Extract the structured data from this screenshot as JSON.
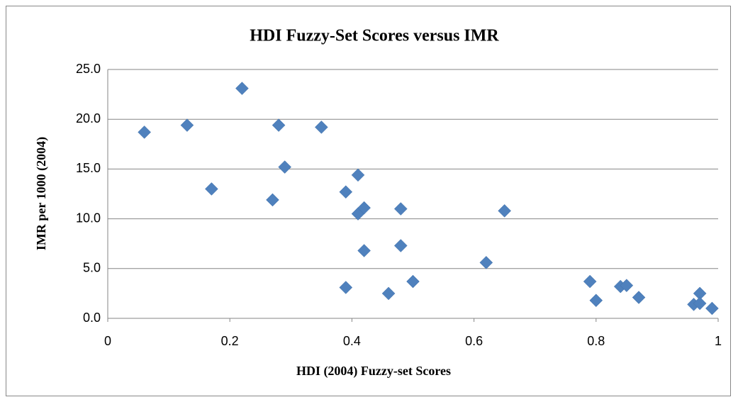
{
  "chart_data": {
    "type": "scatter",
    "title": "HDI Fuzzy-Set Scores versus IMR",
    "x_label": "HDI (2004) Fuzzy-set Scores",
    "y_label": "IMR per 1000  (2004)",
    "color": "#4f81bd",
    "grid": true,
    "xlim": [
      0,
      1
    ],
    "xticks": [
      0,
      0.2,
      0.4,
      0.6,
      0.8,
      1
    ],
    "ylim": [
      0,
      25
    ],
    "yticks": [
      {
        "value": 0,
        "label": "0.0"
      },
      {
        "value": 5,
        "label": "5.0"
      },
      {
        "value": 10,
        "label": "10.0"
      },
      {
        "value": 15,
        "label": "15.0"
      },
      {
        "value": 20,
        "label": "20.0"
      },
      {
        "value": 25,
        "label": "25.0"
      }
    ],
    "x": [
      0.06,
      0.13,
      0.22,
      0.17,
      0.27,
      0.28,
      0.29,
      0.35,
      0.39,
      0.39,
      0.41,
      0.41,
      0.42,
      0.42,
      0.46,
      0.48,
      0.48,
      0.5,
      0.62,
      0.65,
      0.79,
      0.8,
      0.84,
      0.85,
      0.87,
      0.96,
      0.97,
      0.97,
      0.99
    ],
    "values": [
      18.7,
      19.4,
      23.1,
      13.0,
      11.9,
      19.4,
      15.2,
      19.2,
      12.7,
      3.1,
      14.4,
      10.5,
      11.1,
      6.8,
      2.5,
      11.0,
      7.3,
      3.7,
      5.6,
      10.8,
      3.7,
      1.8,
      3.2,
      3.3,
      2.1,
      1.4,
      2.5,
      1.5,
      1.0
    ]
  }
}
